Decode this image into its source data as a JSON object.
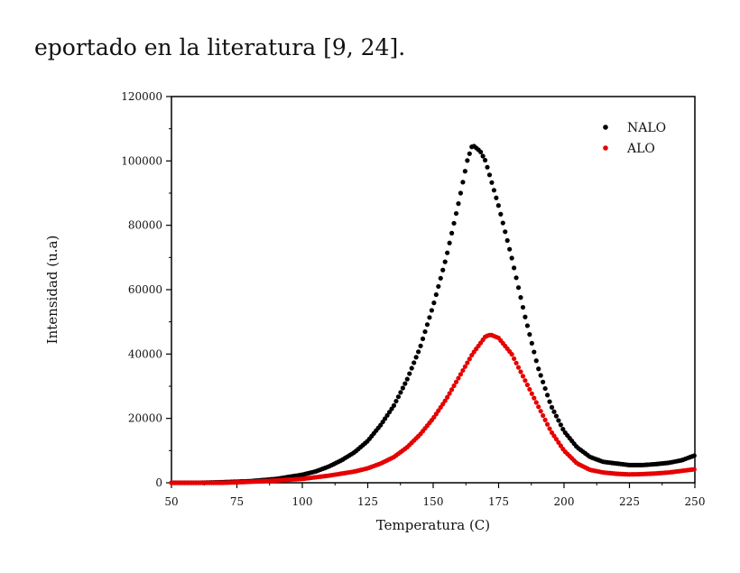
{
  "header_text": "eportado en la literatura [9, 24].",
  "chart_data": {
    "type": "scatter",
    "xlabel": "Temperatura (C)",
    "ylabel": "Intensidad (u.a)",
    "xlim": [
      50,
      250
    ],
    "ylim": [
      0,
      120000
    ],
    "x_ticks": [
      50,
      75,
      100,
      125,
      150,
      175,
      200,
      225,
      250
    ],
    "y_ticks": [
      0,
      20000,
      40000,
      60000,
      80000,
      100000,
      120000
    ],
    "grid": false,
    "legend_position": "top-right",
    "series": [
      {
        "name": "NALO",
        "color": "#000000",
        "peak_x": 165,
        "peak_y": 105000,
        "points": [
          [
            50,
            0
          ],
          [
            60,
            0
          ],
          [
            70,
            200
          ],
          [
            80,
            500
          ],
          [
            90,
            1200
          ],
          [
            100,
            2500
          ],
          [
            105,
            3500
          ],
          [
            110,
            5000
          ],
          [
            115,
            7000
          ],
          [
            120,
            9500
          ],
          [
            125,
            13000
          ],
          [
            130,
            18000
          ],
          [
            135,
            24000
          ],
          [
            140,
            32000
          ],
          [
            145,
            42000
          ],
          [
            150,
            55000
          ],
          [
            155,
            70000
          ],
          [
            160,
            88000
          ],
          [
            163,
            100000
          ],
          [
            165,
            105000
          ],
          [
            168,
            103000
          ],
          [
            170,
            100000
          ],
          [
            175,
            86000
          ],
          [
            180,
            70000
          ],
          [
            185,
            52000
          ],
          [
            190,
            36000
          ],
          [
            195,
            24000
          ],
          [
            200,
            16000
          ],
          [
            205,
            11000
          ],
          [
            210,
            8000
          ],
          [
            215,
            6500
          ],
          [
            220,
            6000
          ],
          [
            225,
            5500
          ],
          [
            230,
            5500
          ],
          [
            235,
            5800
          ],
          [
            240,
            6200
          ],
          [
            245,
            7000
          ],
          [
            250,
            8500
          ]
        ]
      },
      {
        "name": "ALO",
        "color": "#e60000",
        "peak_x": 171,
        "peak_y": 46000,
        "points": [
          [
            50,
            0
          ],
          [
            60,
            0
          ],
          [
            70,
            0
          ],
          [
            80,
            300
          ],
          [
            90,
            700
          ],
          [
            100,
            1200
          ],
          [
            110,
            2200
          ],
          [
            120,
            3500
          ],
          [
            125,
            4500
          ],
          [
            130,
            6000
          ],
          [
            135,
            8000
          ],
          [
            140,
            11000
          ],
          [
            145,
            15000
          ],
          [
            150,
            20000
          ],
          [
            155,
            26000
          ],
          [
            160,
            33000
          ],
          [
            165,
            40000
          ],
          [
            170,
            45500
          ],
          [
            172,
            46000
          ],
          [
            175,
            45000
          ],
          [
            180,
            40000
          ],
          [
            185,
            32000
          ],
          [
            190,
            24000
          ],
          [
            195,
            16000
          ],
          [
            200,
            10000
          ],
          [
            205,
            6000
          ],
          [
            210,
            4000
          ],
          [
            215,
            3200
          ],
          [
            220,
            2800
          ],
          [
            225,
            2600
          ],
          [
            230,
            2700
          ],
          [
            235,
            2900
          ],
          [
            240,
            3200
          ],
          [
            245,
            3700
          ],
          [
            250,
            4200
          ]
        ]
      }
    ]
  }
}
